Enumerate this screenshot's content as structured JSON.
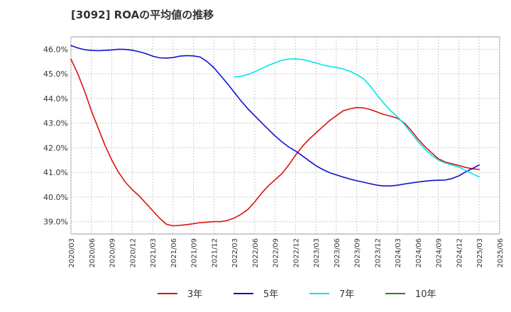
{
  "chart_data": {
    "type": "line",
    "title": "[3092]  ROAの平均値の推移",
    "xlabel": "",
    "ylabel": "",
    "ylim": [
      38.5,
      46.5
    ],
    "yticks": [
      "39.0%",
      "40.0%",
      "41.0%",
      "42.0%",
      "43.0%",
      "44.0%",
      "45.0%",
      "46.0%"
    ],
    "ytick_values": [
      39,
      40,
      41,
      42,
      43,
      44,
      45,
      46
    ],
    "xticks": [
      "2020/03",
      "2020/06",
      "2020/09",
      "2020/12",
      "2021/03",
      "2021/06",
      "2021/09",
      "2021/12",
      "2022/03",
      "2022/06",
      "2022/09",
      "2022/12",
      "2023/03",
      "2023/06",
      "2023/09",
      "2023/12",
      "2024/03",
      "2024/06",
      "2024/09",
      "2024/12",
      "2025/03",
      "2025/06"
    ],
    "grid": true,
    "legend_position": "bottom",
    "series": [
      {
        "name": "3年",
        "color": "#dd1111",
        "points": [
          [
            "2020/03",
            45.6
          ],
          [
            "2020/04",
            45.0
          ],
          [
            "2020/05",
            44.3
          ],
          [
            "2020/06",
            43.5
          ],
          [
            "2020/07",
            42.8
          ],
          [
            "2020/08",
            42.1
          ],
          [
            "2020/09",
            41.5
          ],
          [
            "2020/10",
            41.0
          ],
          [
            "2020/11",
            40.6
          ],
          [
            "2020/12",
            40.3
          ],
          [
            "2021/01",
            40.05
          ],
          [
            "2021/02",
            39.75
          ],
          [
            "2021/03",
            39.45
          ],
          [
            "2021/04",
            39.15
          ],
          [
            "2021/05",
            38.9
          ],
          [
            "2021/06",
            38.83
          ],
          [
            "2021/07",
            38.85
          ],
          [
            "2021/08",
            38.88
          ],
          [
            "2021/09",
            38.92
          ],
          [
            "2021/10",
            38.96
          ],
          [
            "2021/11",
            38.98
          ],
          [
            "2021/12",
            39.0
          ],
          [
            "2022/01",
            39.0
          ],
          [
            "2022/02",
            39.05
          ],
          [
            "2022/03",
            39.15
          ],
          [
            "2022/04",
            39.3
          ],
          [
            "2022/05",
            39.5
          ],
          [
            "2022/06",
            39.8
          ],
          [
            "2022/07",
            40.15
          ],
          [
            "2022/08",
            40.45
          ],
          [
            "2022/09",
            40.7
          ],
          [
            "2022/10",
            40.95
          ],
          [
            "2022/11",
            41.3
          ],
          [
            "2022/12",
            41.7
          ],
          [
            "2023/01",
            42.05
          ],
          [
            "2023/02",
            42.35
          ],
          [
            "2023/03",
            42.6
          ],
          [
            "2023/04",
            42.85
          ],
          [
            "2023/05",
            43.1
          ],
          [
            "2023/06",
            43.3
          ],
          [
            "2023/07",
            43.5
          ],
          [
            "2023/08",
            43.58
          ],
          [
            "2023/09",
            43.63
          ],
          [
            "2023/10",
            43.62
          ],
          [
            "2023/11",
            43.55
          ],
          [
            "2023/12",
            43.45
          ],
          [
            "2024/01",
            43.35
          ],
          [
            "2024/02",
            43.28
          ],
          [
            "2024/03",
            43.2
          ],
          [
            "2024/04",
            43.0
          ],
          [
            "2024/05",
            42.7
          ],
          [
            "2024/06",
            42.35
          ],
          [
            "2024/07",
            42.05
          ],
          [
            "2024/08",
            41.8
          ],
          [
            "2024/09",
            41.55
          ],
          [
            "2024/10",
            41.42
          ],
          [
            "2024/11",
            41.35
          ],
          [
            "2024/12",
            41.28
          ],
          [
            "2025/01",
            41.2
          ],
          [
            "2025/02",
            41.15
          ],
          [
            "2025/03",
            41.12
          ]
        ]
      },
      {
        "name": "5年",
        "color": "#1111cc",
        "points": [
          [
            "2020/03",
            46.15
          ],
          [
            "2020/04",
            46.05
          ],
          [
            "2020/05",
            45.98
          ],
          [
            "2020/06",
            45.95
          ],
          [
            "2020/07",
            45.94
          ],
          [
            "2020/08",
            45.95
          ],
          [
            "2020/09",
            45.97
          ],
          [
            "2020/10",
            46.0
          ],
          [
            "2020/11",
            45.99
          ],
          [
            "2020/12",
            45.96
          ],
          [
            "2021/01",
            45.9
          ],
          [
            "2021/02",
            45.82
          ],
          [
            "2021/03",
            45.72
          ],
          [
            "2021/04",
            45.65
          ],
          [
            "2021/05",
            45.64
          ],
          [
            "2021/06",
            45.66
          ],
          [
            "2021/07",
            45.72
          ],
          [
            "2021/08",
            45.74
          ],
          [
            "2021/09",
            45.73
          ],
          [
            "2021/10",
            45.68
          ],
          [
            "2021/11",
            45.5
          ],
          [
            "2021/12",
            45.25
          ],
          [
            "2022/01",
            44.93
          ],
          [
            "2022/02",
            44.6
          ],
          [
            "2022/03",
            44.25
          ],
          [
            "2022/04",
            43.9
          ],
          [
            "2022/05",
            43.58
          ],
          [
            "2022/06",
            43.3
          ],
          [
            "2022/07",
            43.02
          ],
          [
            "2022/08",
            42.75
          ],
          [
            "2022/09",
            42.48
          ],
          [
            "2022/10",
            42.24
          ],
          [
            "2022/11",
            42.03
          ],
          [
            "2022/12",
            41.87
          ],
          [
            "2023/01",
            41.67
          ],
          [
            "2023/02",
            41.47
          ],
          [
            "2023/03",
            41.27
          ],
          [
            "2023/04",
            41.12
          ],
          [
            "2023/05",
            40.99
          ],
          [
            "2023/06",
            40.9
          ],
          [
            "2023/07",
            40.81
          ],
          [
            "2023/08",
            40.73
          ],
          [
            "2023/09",
            40.66
          ],
          [
            "2023/10",
            40.6
          ],
          [
            "2023/11",
            40.54
          ],
          [
            "2023/12",
            40.48
          ],
          [
            "2024/01",
            40.45
          ],
          [
            "2024/02",
            40.45
          ],
          [
            "2024/03",
            40.48
          ],
          [
            "2024/04",
            40.53
          ],
          [
            "2024/05",
            40.57
          ],
          [
            "2024/06",
            40.61
          ],
          [
            "2024/07",
            40.64
          ],
          [
            "2024/08",
            40.67
          ],
          [
            "2024/09",
            40.68
          ],
          [
            "2024/10",
            40.69
          ],
          [
            "2024/11",
            40.75
          ],
          [
            "2024/12",
            40.86
          ],
          [
            "2025/01",
            41.02
          ],
          [
            "2025/02",
            41.16
          ],
          [
            "2025/03",
            41.3
          ]
        ]
      },
      {
        "name": "7年",
        "color": "#00e5ee",
        "points": [
          [
            "2022/03",
            44.87
          ],
          [
            "2022/04",
            44.9
          ],
          [
            "2022/05",
            44.97
          ],
          [
            "2022/06",
            45.08
          ],
          [
            "2022/07",
            45.21
          ],
          [
            "2022/08",
            45.34
          ],
          [
            "2022/09",
            45.45
          ],
          [
            "2022/10",
            45.55
          ],
          [
            "2022/11",
            45.6
          ],
          [
            "2022/12",
            45.61
          ],
          [
            "2023/01",
            45.58
          ],
          [
            "2023/02",
            45.52
          ],
          [
            "2023/03",
            45.44
          ],
          [
            "2023/04",
            45.36
          ],
          [
            "2023/05",
            45.3
          ],
          [
            "2023/06",
            45.26
          ],
          [
            "2023/07",
            45.2
          ],
          [
            "2023/08",
            45.1
          ],
          [
            "2023/09",
            44.97
          ],
          [
            "2023/10",
            44.8
          ],
          [
            "2023/11",
            44.5
          ],
          [
            "2023/12",
            44.14
          ],
          [
            "2024/01",
            43.8
          ],
          [
            "2024/02",
            43.5
          ],
          [
            "2024/03",
            43.25
          ],
          [
            "2024/04",
            42.95
          ],
          [
            "2024/05",
            42.6
          ],
          [
            "2024/06",
            42.25
          ],
          [
            "2024/07",
            41.95
          ],
          [
            "2024/08",
            41.7
          ],
          [
            "2024/09",
            41.5
          ],
          [
            "2024/10",
            41.38
          ],
          [
            "2024/11",
            41.3
          ],
          [
            "2024/12",
            41.22
          ],
          [
            "2025/01",
            41.08
          ],
          [
            "2025/02",
            40.94
          ],
          [
            "2025/03",
            40.82
          ]
        ]
      },
      {
        "name": "10年",
        "color": "#228822",
        "points": []
      }
    ]
  }
}
